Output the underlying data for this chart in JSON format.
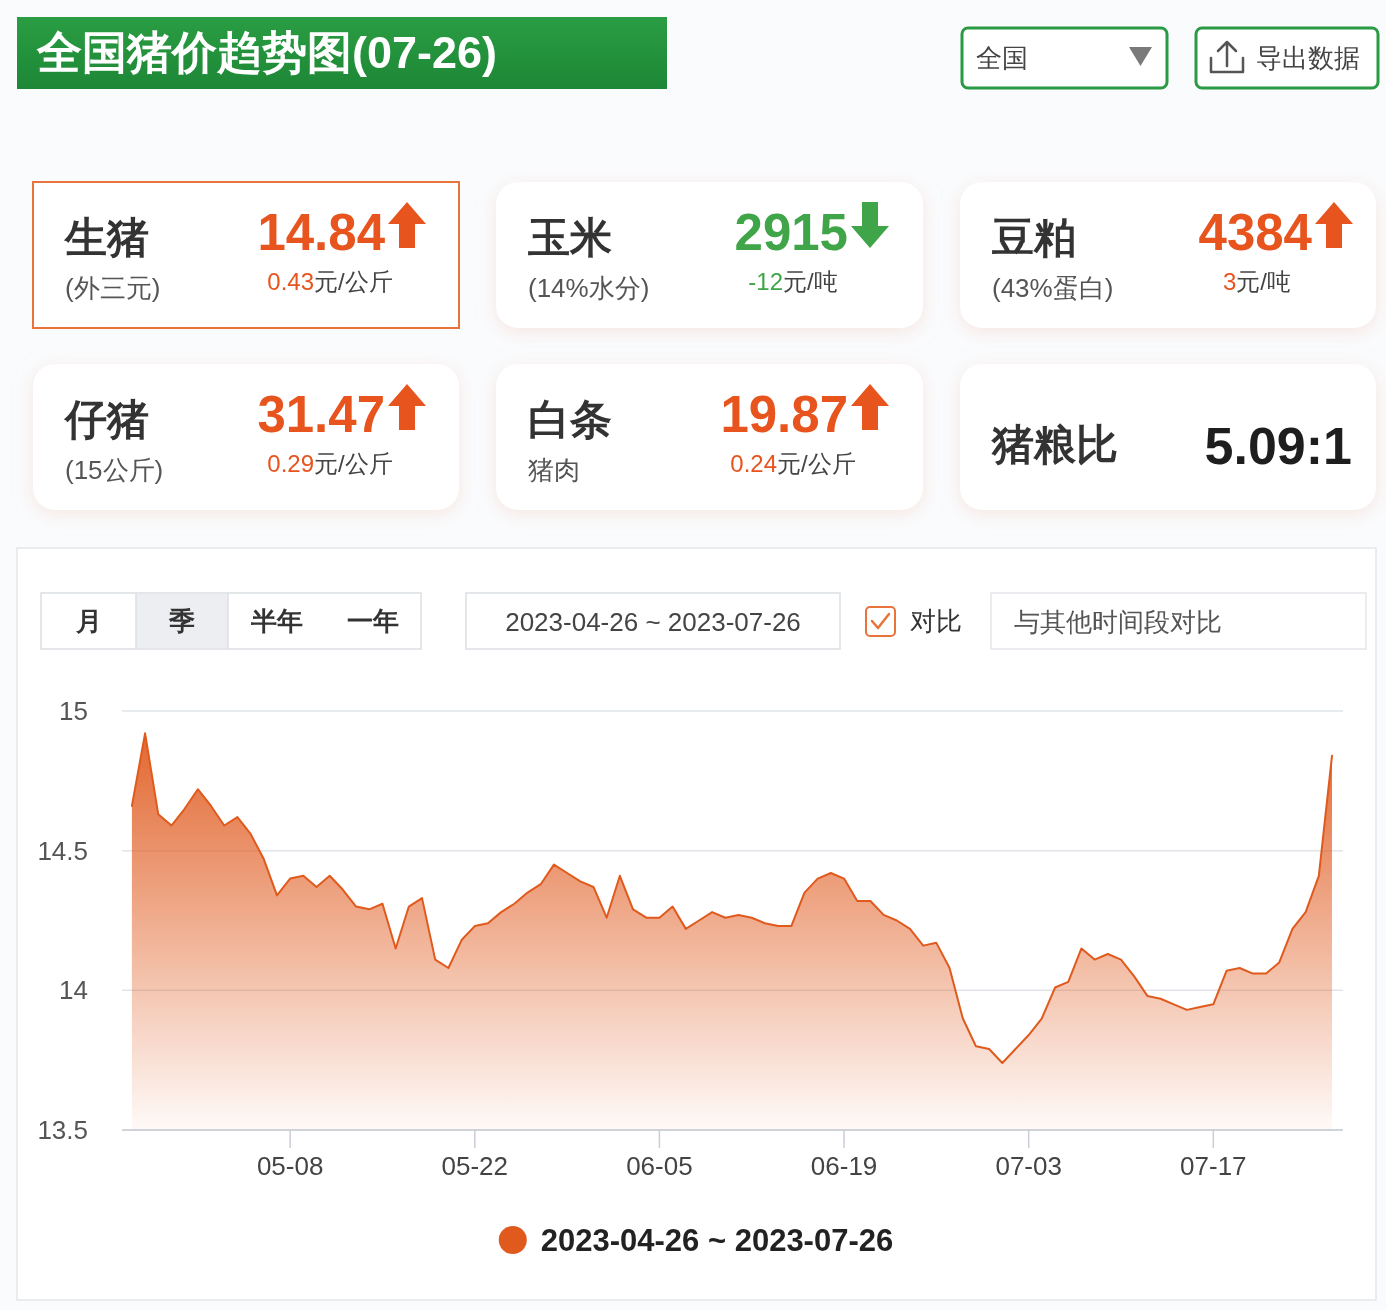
{
  "chart_data": [
    {
      "type": "other",
      "title": "全国猪价趋势图(07-26)",
      "annotations": [
        "全国",
        "导出数据"
      ]
    },
    {
      "type": "other",
      "title": "生猪",
      "subtitle": "(外三元)",
      "values": [
        14.84,
        0.43
      ],
      "data_labels": true,
      "annotations": [
        "元/公斤"
      ],
      "colors": [
        "#e8541e",
        "#e8541e"
      ]
    },
    {
      "type": "other",
      "title": "玉米",
      "subtitle": "(14%水分)",
      "values": [
        2915,
        -12
      ],
      "data_labels": true,
      "annotations": [
        "元/吨"
      ],
      "colors": [
        "#3fa548",
        "#3fa548"
      ]
    },
    {
      "type": "other",
      "title": "豆粕",
      "subtitle": "(43%蛋白)",
      "values": [
        4384,
        3
      ],
      "data_labels": true,
      "annotations": [
        "元/吨"
      ],
      "colors": [
        "#e8541e",
        "#e8541e"
      ]
    },
    {
      "type": "other",
      "title": "仔猪",
      "subtitle": "(15公斤)",
      "values": [
        31.47,
        0.29
      ],
      "data_labels": true,
      "annotations": [
        "元/公斤"
      ],
      "colors": [
        "#e8541e",
        "#e8541e"
      ]
    },
    {
      "type": "other",
      "title": "白条",
      "subtitle": "猪肉",
      "values": [
        19.87,
        0.24
      ],
      "data_labels": true,
      "annotations": [
        "元/公斤"
      ],
      "colors": [
        "#e8541e",
        "#e8541e"
      ]
    },
    {
      "type": "other",
      "title": "猪粮比",
      "annotations": [
        "5.09:1"
      ]
    },
    {
      "type": "other",
      "annotations": [
        "月",
        "季",
        "半年",
        "一年",
        "2023-04-26 ~ 2023-07-26",
        "对比",
        "与其他时间段对比"
      ]
    },
    {
      "type": "area",
      "x": [
        "2023-04-26",
        "2023-04-27",
        "2023-04-28",
        "2023-04-29",
        "2023-04-30",
        "2023-05-01",
        "2023-05-02",
        "2023-05-03",
        "2023-05-04",
        "2023-05-05",
        "2023-05-06",
        "2023-05-07",
        "2023-05-08",
        "2023-05-09",
        "2023-05-10",
        "2023-05-11",
        "2023-05-12",
        "2023-05-13",
        "2023-05-14",
        "2023-05-15",
        "2023-05-16",
        "2023-05-17",
        "2023-05-18",
        "2023-05-19",
        "2023-05-20",
        "2023-05-21",
        "2023-05-22",
        "2023-05-23",
        "2023-05-24",
        "2023-05-25",
        "2023-05-26",
        "2023-05-27",
        "2023-05-28",
        "2023-05-29",
        "2023-05-30",
        "2023-05-31",
        "2023-06-01",
        "2023-06-02",
        "2023-06-03",
        "2023-06-04",
        "2023-06-05",
        "2023-06-06",
        "2023-06-07",
        "2023-06-08",
        "2023-06-09",
        "2023-06-10",
        "2023-06-11",
        "2023-06-12",
        "2023-06-13",
        "2023-06-14",
        "2023-06-15",
        "2023-06-16",
        "2023-06-17",
        "2023-06-18",
        "2023-06-19",
        "2023-06-20",
        "2023-06-21",
        "2023-06-22",
        "2023-06-23",
        "2023-06-24",
        "2023-06-25",
        "2023-06-26",
        "2023-06-27",
        "2023-06-28",
        "2023-06-29",
        "2023-06-30",
        "2023-07-01",
        "2023-07-02",
        "2023-07-03",
        "2023-07-04",
        "2023-07-05",
        "2023-07-06",
        "2023-07-07",
        "2023-07-08",
        "2023-07-09",
        "2023-07-10",
        "2023-07-11",
        "2023-07-12",
        "2023-07-13",
        "2023-07-14",
        "2023-07-15",
        "2023-07-16",
        "2023-07-17",
        "2023-07-18",
        "2023-07-19",
        "2023-07-20",
        "2023-07-21",
        "2023-07-22",
        "2023-07-23",
        "2023-07-24",
        "2023-07-25",
        "2023-07-26"
      ],
      "series": [
        {
          "name": "2023-04-26 ~ 2023-07-26",
          "color": "#e05a1e",
          "values": [
            14.66,
            14.92,
            14.63,
            14.59,
            14.65,
            14.72,
            14.66,
            14.59,
            14.62,
            14.56,
            14.47,
            14.34,
            14.4,
            14.41,
            14.37,
            14.41,
            14.36,
            14.3,
            14.29,
            14.31,
            14.15,
            14.3,
            14.33,
            14.11,
            14.08,
            14.18,
            14.23,
            14.24,
            14.28,
            14.31,
            14.35,
            14.38,
            14.45,
            14.42,
            14.39,
            14.37,
            14.26,
            14.41,
            14.29,
            14.26,
            14.26,
            14.3,
            14.22,
            14.25,
            14.28,
            14.26,
            14.27,
            14.26,
            14.24,
            14.23,
            14.23,
            14.35,
            14.4,
            14.42,
            14.4,
            14.32,
            14.32,
            14.27,
            14.25,
            14.22,
            14.16,
            14.17,
            14.08,
            13.9,
            13.8,
            13.79,
            13.74,
            13.79,
            13.84,
            13.9,
            14.01,
            14.03,
            14.15,
            14.11,
            14.13,
            14.11,
            14.05,
            13.98,
            13.97,
            13.95,
            13.93,
            13.94,
            13.95,
            14.07,
            14.08,
            14.06,
            14.06,
            14.1,
            14.22,
            14.28,
            14.41,
            14.84
          ]
        }
      ],
      "xlim": [
        "2023-04-25T06:00",
        "2023-07-26T20:00"
      ],
      "xticks": [
        {
          "value": "2023-05-08",
          "label": "05-08"
        },
        {
          "value": "2023-05-22",
          "label": "05-22"
        },
        {
          "value": "2023-06-05",
          "label": "06-05"
        },
        {
          "value": "2023-06-19",
          "label": "06-19"
        },
        {
          "value": "2023-07-03",
          "label": "07-03"
        },
        {
          "value": "2023-07-17",
          "label": "07-17"
        }
      ],
      "ylim": [
        13.5,
        15
      ],
      "yticks": [
        13.5,
        14,
        14.5,
        15
      ],
      "grid": "y",
      "legend": "bottom"
    }
  ]
}
